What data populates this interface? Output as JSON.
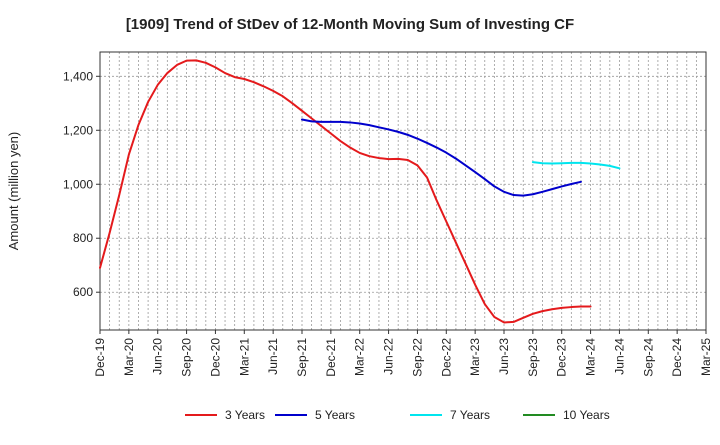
{
  "chart_data": {
    "type": "line",
    "title": "[1909]  Trend of StDev of 12-Month Moving Sum of Investing CF",
    "xlabel": "",
    "ylabel": "Amount (million yen)",
    "x_ticks": [
      "Dec-19",
      "Mar-20",
      "Jun-20",
      "Sep-20",
      "Dec-20",
      "Mar-21",
      "Jun-21",
      "Sep-21",
      "Dec-21",
      "Mar-22",
      "Jun-22",
      "Sep-22",
      "Dec-22",
      "Mar-23",
      "Jun-23",
      "Sep-23",
      "Dec-23",
      "Mar-24",
      "Jun-24",
      "Sep-24",
      "Dec-24",
      "Mar-25"
    ],
    "y_ticks": [
      600,
      800,
      1000,
      1200,
      1400
    ],
    "ylim": [
      460,
      1490
    ],
    "grid": true,
    "legend_position": "bottom",
    "series": [
      {
        "name": "3 Years",
        "color": "#e41a1c",
        "points": [
          [
            "Dec-19",
            690
          ],
          [
            "Jan-20",
            820
          ],
          [
            "Feb-20",
            960
          ],
          [
            "Mar-20",
            1110
          ],
          [
            "Apr-20",
            1220
          ],
          [
            "May-20",
            1305
          ],
          [
            "Jun-20",
            1368
          ],
          [
            "Jul-20",
            1412
          ],
          [
            "Aug-20",
            1442
          ],
          [
            "Sep-20",
            1458
          ],
          [
            "Oct-20",
            1459
          ],
          [
            "Nov-20",
            1450
          ],
          [
            "Dec-20",
            1433
          ],
          [
            "Jan-21",
            1412
          ],
          [
            "Feb-21",
            1397
          ],
          [
            "Mar-21",
            1390
          ],
          [
            "Apr-21",
            1378
          ],
          [
            "May-21",
            1363
          ],
          [
            "Jun-21",
            1346
          ],
          [
            "Jul-21",
            1326
          ],
          [
            "Aug-21",
            1300
          ],
          [
            "Sep-21",
            1272
          ],
          [
            "Oct-21",
            1244
          ],
          [
            "Nov-21",
            1216
          ],
          [
            "Dec-21",
            1188
          ],
          [
            "Jan-22",
            1160
          ],
          [
            "Feb-22",
            1136
          ],
          [
            "Mar-22",
            1116
          ],
          [
            "Apr-22",
            1104
          ],
          [
            "May-22",
            1097
          ],
          [
            "Jun-22",
            1093
          ],
          [
            "Jul-22",
            1094
          ],
          [
            "Aug-22",
            1090
          ],
          [
            "Sep-22",
            1070
          ],
          [
            "Oct-22",
            1025
          ],
          [
            "Nov-22",
            940
          ],
          [
            "Dec-22",
            862
          ],
          [
            "Jan-23",
            784
          ],
          [
            "Feb-23",
            706
          ],
          [
            "Mar-23",
            628
          ],
          [
            "Apr-23",
            556
          ],
          [
            "May-23",
            508
          ],
          [
            "Jun-23",
            488
          ],
          [
            "Jul-23",
            490
          ],
          [
            "Aug-23",
            505
          ],
          [
            "Sep-23",
            520
          ],
          [
            "Oct-23",
            530
          ],
          [
            "Nov-23",
            537
          ],
          [
            "Dec-23",
            542
          ],
          [
            "Jan-24",
            545
          ],
          [
            "Feb-24",
            547
          ],
          [
            "Mar-24",
            547
          ]
        ]
      },
      {
        "name": "5 Years",
        "color": "#0000cc",
        "points": [
          [
            "Sep-21",
            1240
          ],
          [
            "Oct-21",
            1233
          ],
          [
            "Nov-21",
            1231
          ],
          [
            "Dec-21",
            1231
          ],
          [
            "Jan-22",
            1231
          ],
          [
            "Feb-22",
            1229
          ],
          [
            "Mar-22",
            1225
          ],
          [
            "Apr-22",
            1219
          ],
          [
            "May-22",
            1211
          ],
          [
            "Jun-22",
            1203
          ],
          [
            "Jul-22",
            1194
          ],
          [
            "Aug-22",
            1183
          ],
          [
            "Sep-22",
            1169
          ],
          [
            "Oct-22",
            1153
          ],
          [
            "Nov-22",
            1136
          ],
          [
            "Dec-22",
            1117
          ],
          [
            "Jan-23",
            1095
          ],
          [
            "Feb-23",
            1070
          ],
          [
            "Mar-23",
            1045
          ],
          [
            "Apr-23",
            1019
          ],
          [
            "May-23",
            992
          ],
          [
            "Jun-23",
            972
          ],
          [
            "Jul-23",
            960
          ],
          [
            "Aug-23",
            958
          ],
          [
            "Sep-23",
            963
          ],
          [
            "Oct-23",
            972
          ],
          [
            "Nov-23",
            982
          ],
          [
            "Dec-23",
            992
          ],
          [
            "Jan-24",
            1001
          ],
          [
            "Feb-24",
            1009
          ]
        ]
      },
      {
        "name": "7 Years",
        "color": "#00e5ee",
        "points": [
          [
            "Sep-23",
            1082
          ],
          [
            "Oct-23",
            1078
          ],
          [
            "Nov-23",
            1077
          ],
          [
            "Dec-23",
            1078
          ],
          [
            "Jan-24",
            1079
          ],
          [
            "Feb-24",
            1079
          ],
          [
            "Mar-24",
            1077
          ],
          [
            "Apr-24",
            1073
          ],
          [
            "May-24",
            1068
          ],
          [
            "Jun-24",
            1059
          ]
        ]
      },
      {
        "name": "10 Years",
        "color": "#228b22",
        "points": []
      }
    ]
  }
}
